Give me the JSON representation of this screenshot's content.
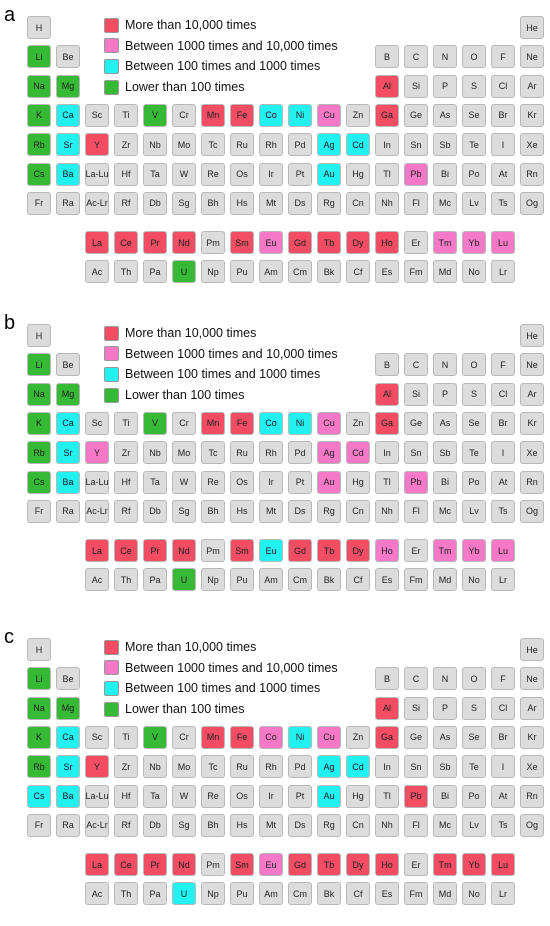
{
  "colors": {
    "high": "#f24d62",
    "mid": "#f679c8",
    "low": "#22f1f1",
    "lowest": "#36b934",
    "none": "#dcdcdc"
  },
  "legend": [
    {
      "cat": "high",
      "label": "More than 10,000 times"
    },
    {
      "cat": "mid",
      "label": "Between 1000 times and 10,000 times"
    },
    {
      "cat": "low",
      "label": "Between 100 times and 1000 times"
    },
    {
      "cat": "lowest",
      "label": "Lower than 100 times"
    }
  ],
  "grid": {
    "rows": [
      [
        "H",
        null,
        null,
        null,
        null,
        null,
        null,
        null,
        null,
        null,
        null,
        null,
        null,
        null,
        null,
        null,
        null,
        "He"
      ],
      [
        "Li",
        "Be",
        null,
        null,
        null,
        null,
        null,
        null,
        null,
        null,
        null,
        null,
        "B",
        "C",
        "N",
        "O",
        "F",
        "Ne"
      ],
      [
        "Na",
        "Mg",
        null,
        null,
        null,
        null,
        null,
        null,
        null,
        null,
        null,
        null,
        "Al",
        "Si",
        "P",
        "S",
        "Cl",
        "Ar"
      ],
      [
        "K",
        "Ca",
        "Sc",
        "Ti",
        "V",
        "Cr",
        "Mn",
        "Fe",
        "Co",
        "Ni",
        "Cu",
        "Zn",
        "Ga",
        "Ge",
        "As",
        "Se",
        "Br",
        "Kr"
      ],
      [
        "Rb",
        "Sr",
        "Y",
        "Zr",
        "Nb",
        "Mo",
        "Tc",
        "Ru",
        "Rh",
        "Pd",
        "Ag",
        "Cd",
        "In",
        "Sn",
        "Sb",
        "Te",
        "I",
        "Xe"
      ],
      [
        "Cs",
        "Ba",
        "La-Lu",
        "Hf",
        "Ta",
        "W",
        "Re",
        "Os",
        "Ir",
        "Pt",
        "Au",
        "Hg",
        "Tl",
        "Pb",
        "Bi",
        "Po",
        "At",
        "Rn"
      ],
      [
        "Fr",
        "Ra",
        "Ac-Lr",
        "Rf",
        "Db",
        "Sg",
        "Bh",
        "Hs",
        "Mt",
        "Ds",
        "Rg",
        "Cn",
        "Nh",
        "Fl",
        "Mc",
        "Lv",
        "Ts",
        "Og"
      ]
    ],
    "lanthanides": [
      "La",
      "Ce",
      "Pr",
      "Nd",
      "Pm",
      "Sm",
      "Eu",
      "Gd",
      "Tb",
      "Dy",
      "Ho",
      "Er",
      "Tm",
      "Yb",
      "Lu"
    ],
    "actinides": [
      "Ac",
      "Th",
      "Pa",
      "U",
      "Np",
      "Pu",
      "Am",
      "Cm",
      "Bk",
      "Cf",
      "Es",
      "Fm",
      "Md",
      "No",
      "Lr"
    ]
  },
  "panels": [
    {
      "label": "a",
      "colored": {
        "Li": "lowest",
        "Na": "lowest",
        "Mg": "lowest",
        "K": "lowest",
        "Rb": "lowest",
        "Cs": "lowest",
        "V": "lowest",
        "U": "lowest",
        "Ca": "low",
        "Sr": "low",
        "Ba": "low",
        "Co": "low",
        "Ni": "low",
        "Ag": "low",
        "Cd": "low",
        "Au": "low",
        "Cu": "mid",
        "Pb": "mid",
        "Eu": "mid",
        "Tm": "mid",
        "Yb": "mid",
        "Lu": "mid",
        "Al": "high",
        "Y": "high",
        "Mn": "high",
        "Fe": "high",
        "Ga": "high",
        "La": "high",
        "Ce": "high",
        "Pr": "high",
        "Nd": "high",
        "Sm": "high",
        "Gd": "high",
        "Tb": "high",
        "Dy": "high",
        "Ho": "high"
      }
    },
    {
      "label": "b",
      "colored": {
        "Li": "lowest",
        "Na": "lowest",
        "Mg": "lowest",
        "K": "lowest",
        "Rb": "lowest",
        "Cs": "lowest",
        "V": "lowest",
        "U": "lowest",
        "Ca": "low",
        "Sr": "low",
        "Ba": "low",
        "Co": "low",
        "Ni": "low",
        "Eu": "low",
        "Y": "mid",
        "Cu": "mid",
        "Ag": "mid",
        "Cd": "mid",
        "Au": "mid",
        "Pb": "mid",
        "Ho": "mid",
        "Tm": "mid",
        "Yb": "mid",
        "Lu": "mid",
        "Al": "high",
        "Mn": "high",
        "Fe": "high",
        "Ga": "high",
        "La": "high",
        "Ce": "high",
        "Pr": "high",
        "Nd": "high",
        "Sm": "high",
        "Gd": "high",
        "Tb": "high",
        "Dy": "high"
      }
    },
    {
      "label": "c",
      "colored": {
        "Li": "lowest",
        "Na": "lowest",
        "Mg": "lowest",
        "K": "lowest",
        "Rb": "lowest",
        "V": "lowest",
        "Ca": "low",
        "Sr": "low",
        "Cs": "low",
        "Ba": "low",
        "Ni": "low",
        "Ag": "low",
        "Cd": "low",
        "Au": "low",
        "U": "low",
        "Co": "mid",
        "Cu": "mid",
        "Eu": "mid",
        "Al": "high",
        "Y": "high",
        "Mn": "high",
        "Fe": "high",
        "Ga": "high",
        "Pb": "high",
        "La": "high",
        "Ce": "high",
        "Pr": "high",
        "Nd": "high",
        "Sm": "high",
        "Gd": "high",
        "Tb": "high",
        "Dy": "high",
        "Ho": "high",
        "Tm": "high",
        "Yb": "high",
        "Lu": "high"
      }
    }
  ]
}
